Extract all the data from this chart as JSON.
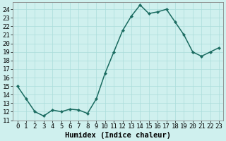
{
  "x": [
    0,
    1,
    2,
    3,
    4,
    5,
    6,
    7,
    8,
    9,
    10,
    11,
    12,
    13,
    14,
    15,
    16,
    17,
    18,
    19,
    20,
    21,
    22,
    23
  ],
  "y": [
    15,
    13.5,
    12,
    11.5,
    12.2,
    12,
    12.3,
    12.2,
    11.8,
    13.5,
    16.5,
    19,
    21.5,
    23.2,
    24.5,
    23.5,
    23.7,
    24,
    22.5,
    21,
    19,
    18.5,
    19,
    19.5
  ],
  "line_color": "#1a6b60",
  "marker_color": "#1a6b60",
  "bg_color": "#cff0ee",
  "grid_color": "#aaddda",
  "xlabel": "Humidex (Indice chaleur)",
  "xlim": [
    -0.5,
    23.5
  ],
  "ylim": [
    11,
    24.8
  ],
  "yticks": [
    11,
    12,
    13,
    14,
    15,
    16,
    17,
    18,
    19,
    20,
    21,
    22,
    23,
    24
  ],
  "xticks": [
    0,
    1,
    2,
    3,
    4,
    5,
    6,
    7,
    8,
    9,
    10,
    11,
    12,
    13,
    14,
    15,
    16,
    17,
    18,
    19,
    20,
    21,
    22,
    23
  ],
  "xlabel_fontsize": 7.5,
  "tick_fontsize": 6.5,
  "linewidth": 1.1,
  "markersize": 2.2
}
